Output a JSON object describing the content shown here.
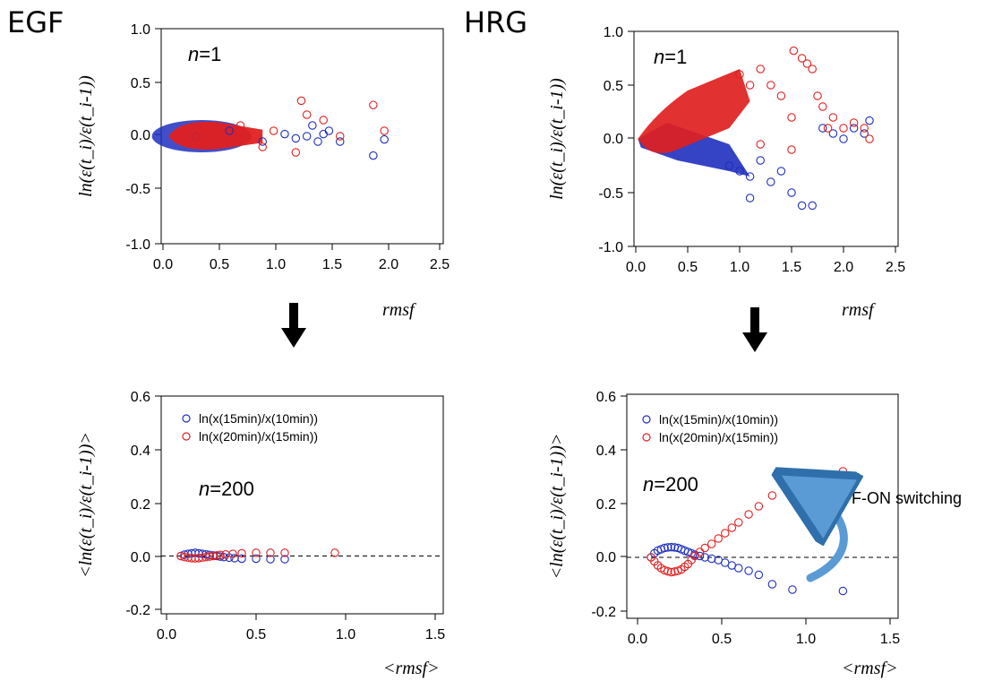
{
  "panel_titles": {
    "left": "EGF",
    "right": "HRG"
  },
  "colors": {
    "blue": "#1f2fbf",
    "red": "#e02020",
    "annotation_arrow": "#5b9bd5"
  },
  "chart_data": [
    {
      "id": "egf_n1",
      "type": "scatter",
      "n_label": "=1",
      "xlabel": "rmsf",
      "ylabel": "ln(ε(t_i)/ε(t_i-1))",
      "xlim": [
        0,
        2.5
      ],
      "ylim": [
        -1.0,
        1.0
      ],
      "xticks": [
        "0.0",
        "0.5",
        "1.0",
        "1.5",
        "2.0",
        "2.5"
      ],
      "yticks": [
        "1.0",
        "0.5",
        "0.0",
        "-0.5",
        "-1.0"
      ],
      "grid": false,
      "series": [
        {
          "color": "blue",
          "points": [
            [
              0.3,
              0.0
            ],
            [
              0.6,
              0.05
            ],
            [
              0.9,
              -0.05
            ],
            [
              1.1,
              0.02
            ],
            [
              1.2,
              -0.02
            ],
            [
              1.3,
              0.0
            ],
            [
              1.35,
              0.1
            ],
            [
              1.4,
              -0.05
            ],
            [
              1.45,
              0.02
            ],
            [
              1.5,
              0.05
            ],
            [
              1.6,
              -0.05
            ],
            [
              1.9,
              -0.18
            ],
            [
              2.0,
              -0.03
            ]
          ]
        },
        {
          "color": "red",
          "points": [
            [
              0.3,
              0.0
            ],
            [
              0.7,
              0.1
            ],
            [
              0.9,
              -0.1
            ],
            [
              1.0,
              0.05
            ],
            [
              1.2,
              -0.15
            ],
            [
              1.25,
              0.33
            ],
            [
              1.3,
              0.2
            ],
            [
              1.45,
              0.15
            ],
            [
              1.6,
              0.0
            ],
            [
              1.9,
              0.29
            ],
            [
              2.0,
              0.05
            ]
          ]
        }
      ]
    },
    {
      "id": "hrg_n1",
      "type": "scatter",
      "n_label": "=1",
      "xlabel": "rmsf",
      "ylabel": "ln(ε(t_i)/ε(t_i-1))",
      "xlim": [
        0,
        2.5
      ],
      "ylim": [
        -1.0,
        1.0
      ],
      "xticks": [
        "0.0",
        "0.5",
        "1.0",
        "1.5",
        "2.0",
        "2.5"
      ],
      "yticks": [
        "1.0",
        "0.5",
        "0.0",
        "-0.5",
        "-1.0"
      ],
      "grid": false,
      "series": [
        {
          "color": "blue",
          "points": [
            [
              0.9,
              -0.25
            ],
            [
              1.0,
              -0.3
            ],
            [
              1.1,
              -0.35
            ],
            [
              1.2,
              -0.2
            ],
            [
              1.3,
              -0.4
            ],
            [
              1.4,
              -0.3
            ],
            [
              1.5,
              -0.5
            ],
            [
              1.6,
              -0.62
            ],
            [
              1.7,
              -0.62
            ],
            [
              1.8,
              0.1
            ],
            [
              1.9,
              0.05
            ],
            [
              2.0,
              0.0
            ],
            [
              2.1,
              0.1
            ],
            [
              2.2,
              0.05
            ],
            [
              2.25,
              0.17
            ],
            [
              1.1,
              -0.55
            ]
          ]
        },
        {
          "color": "red",
          "points": [
            [
              1.0,
              0.6
            ],
            [
              1.1,
              0.5
            ],
            [
              1.2,
              0.65
            ],
            [
              1.3,
              0.5
            ],
            [
              1.4,
              0.4
            ],
            [
              1.5,
              0.2
            ],
            [
              1.52,
              0.82
            ],
            [
              1.6,
              0.75
            ],
            [
              1.65,
              0.7
            ],
            [
              1.7,
              0.65
            ],
            [
              1.75,
              0.4
            ],
            [
              1.8,
              0.3
            ],
            [
              1.85,
              0.1
            ],
            [
              1.9,
              0.2
            ],
            [
              2.0,
              0.1
            ],
            [
              2.1,
              0.15
            ],
            [
              2.2,
              0.1
            ],
            [
              2.25,
              0.0
            ],
            [
              1.5,
              -0.1
            ],
            [
              1.2,
              -0.05
            ]
          ]
        }
      ]
    },
    {
      "id": "egf_n200",
      "type": "scatter",
      "n_label": "=200",
      "xlabel": "<rmsf>",
      "ylabel": "<ln(ε(t_i)/ε(t_i-1))>",
      "xlim": [
        0,
        1.5
      ],
      "ylim": [
        -0.2,
        0.6
      ],
      "xticks": [
        "0.0",
        "0.5",
        "1.0",
        "1.5"
      ],
      "yticks": [
        "0.6",
        "0.4",
        "0.2",
        "0.0",
        "-0.2"
      ],
      "grid": false,
      "legend": {
        "position": "top-left",
        "entries": [
          {
            "label": "ln(x(15min)/x(10min))",
            "color": "blue"
          },
          {
            "label": "ln(x(20min)/x(15min))",
            "color": "red"
          }
        ]
      },
      "series": [
        {
          "name": "ln(x(15min)/x(10min))",
          "color": "blue",
          "points": [
            [
              0.08,
              0.0
            ],
            [
              0.1,
              0.005
            ],
            [
              0.12,
              0.008
            ],
            [
              0.14,
              0.01
            ],
            [
              0.16,
              0.012
            ],
            [
              0.18,
              0.01
            ],
            [
              0.2,
              0.008
            ],
            [
              0.22,
              0.006
            ],
            [
              0.24,
              0.004
            ],
            [
              0.26,
              0.002
            ],
            [
              0.28,
              0.0
            ],
            [
              0.3,
              -0.002
            ],
            [
              0.32,
              -0.004
            ],
            [
              0.35,
              -0.006
            ],
            [
              0.38,
              -0.008
            ],
            [
              0.42,
              -0.01
            ],
            [
              0.5,
              -0.01
            ],
            [
              0.58,
              -0.012
            ],
            [
              0.66,
              -0.012
            ]
          ]
        },
        {
          "name": "ln(x(20min)/x(15min))",
          "color": "red",
          "points": [
            [
              0.08,
              0.0
            ],
            [
              0.1,
              -0.004
            ],
            [
              0.12,
              -0.006
            ],
            [
              0.14,
              -0.008
            ],
            [
              0.16,
              -0.009
            ],
            [
              0.18,
              -0.008
            ],
            [
              0.2,
              -0.006
            ],
            [
              0.22,
              -0.004
            ],
            [
              0.24,
              -0.002
            ],
            [
              0.26,
              0.0
            ],
            [
              0.28,
              0.002
            ],
            [
              0.3,
              0.004
            ],
            [
              0.33,
              0.006
            ],
            [
              0.37,
              0.008
            ],
            [
              0.42,
              0.01
            ],
            [
              0.5,
              0.012
            ],
            [
              0.58,
              0.012
            ],
            [
              0.66,
              0.012
            ],
            [
              0.94,
              0.012
            ]
          ]
        }
      ]
    },
    {
      "id": "hrg_n200",
      "type": "scatter",
      "n_label": "=200",
      "xlabel": "<rmsf>",
      "ylabel": "<ln(ε(t_i)/ε(t_i-1))>",
      "xlim": [
        0,
        1.5
      ],
      "ylim": [
        -0.2,
        0.6
      ],
      "xticks": [
        "0.0",
        "0.5",
        "1.0",
        "1.5"
      ],
      "yticks": [
        "0.6",
        "0.4",
        "0.2",
        "0.0",
        "-0.2"
      ],
      "grid": false,
      "legend": {
        "position": "top-left",
        "entries": [
          {
            "label": "ln(x(15min)/x(10min))",
            "color": "blue"
          },
          {
            "label": "ln(x(20min)/x(15min))",
            "color": "red"
          }
        ]
      },
      "annotation": "OFF-ON switching",
      "series": [
        {
          "name": "ln(x(15min)/x(10min))",
          "color": "blue",
          "points": [
            [
              0.08,
              0.0
            ],
            [
              0.1,
              0.015
            ],
            [
              0.12,
              0.025
            ],
            [
              0.14,
              0.03
            ],
            [
              0.16,
              0.035
            ],
            [
              0.18,
              0.037
            ],
            [
              0.2,
              0.038
            ],
            [
              0.22,
              0.037
            ],
            [
              0.24,
              0.035
            ],
            [
              0.26,
              0.03
            ],
            [
              0.28,
              0.025
            ],
            [
              0.3,
              0.02
            ],
            [
              0.32,
              0.015
            ],
            [
              0.34,
              0.01
            ],
            [
              0.37,
              0.005
            ],
            [
              0.4,
              0.0
            ],
            [
              0.44,
              -0.005
            ],
            [
              0.48,
              -0.01
            ],
            [
              0.52,
              -0.02
            ],
            [
              0.56,
              -0.03
            ],
            [
              0.6,
              -0.04
            ],
            [
              0.66,
              -0.05
            ],
            [
              0.72,
              -0.065
            ],
            [
              0.8,
              -0.1
            ],
            [
              0.92,
              -0.12
            ],
            [
              1.22,
              -0.125
            ]
          ]
        },
        {
          "name": "ln(x(20min)/x(15min))",
          "color": "red",
          "points": [
            [
              0.08,
              0.0
            ],
            [
              0.1,
              -0.015
            ],
            [
              0.12,
              -0.03
            ],
            [
              0.14,
              -0.04
            ],
            [
              0.16,
              -0.048
            ],
            [
              0.18,
              -0.052
            ],
            [
              0.2,
              -0.055
            ],
            [
              0.22,
              -0.053
            ],
            [
              0.24,
              -0.05
            ],
            [
              0.26,
              -0.045
            ],
            [
              0.28,
              -0.035
            ],
            [
              0.3,
              -0.025
            ],
            [
              0.32,
              -0.01
            ],
            [
              0.34,
              0.005
            ],
            [
              0.37,
              0.02
            ],
            [
              0.4,
              0.035
            ],
            [
              0.44,
              0.05
            ],
            [
              0.48,
              0.07
            ],
            [
              0.52,
              0.09
            ],
            [
              0.56,
              0.11
            ],
            [
              0.6,
              0.13
            ],
            [
              0.66,
              0.16
            ],
            [
              0.72,
              0.19
            ],
            [
              0.8,
              0.23
            ],
            [
              0.92,
              0.29
            ],
            [
              1.22,
              0.32
            ]
          ]
        }
      ]
    }
  ]
}
